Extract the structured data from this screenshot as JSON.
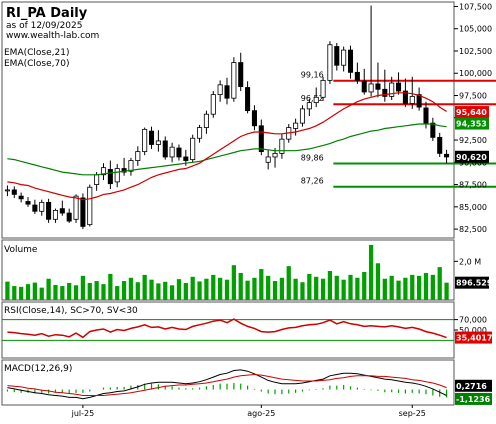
{
  "chart_data": [
    {
      "type": "candlestick",
      "panel": "price",
      "title": "RI_PA Daily",
      "subtitle": "as of 12/09/2025",
      "watermark": "www.wealth-lab.com",
      "overlay_labels": [
        "EMA(Close,21)",
        "EMA(Close,70)"
      ],
      "ylim": [
        81.5,
        108
      ],
      "yticks": [
        "82,500",
        "85,000",
        "87,500",
        "90,000",
        "92,500",
        "95,000",
        "97,500",
        "100,000",
        "102,500",
        "105,000",
        "107,500"
      ],
      "ytick_values": [
        82.5,
        85,
        87.5,
        90,
        92.5,
        95,
        97.5,
        100,
        102.5,
        105,
        107.5
      ],
      "x_labels": [
        {
          "label": "jul-25",
          "index": 11
        },
        {
          "label": "ago-25",
          "index": 37
        },
        {
          "label": "sep-25",
          "index": 59
        }
      ],
      "candles": [
        [
          86.8,
          87.4,
          86.2,
          86.9
        ],
        [
          86.9,
          87.3,
          86.0,
          86.4
        ],
        [
          86.2,
          86.6,
          85.5,
          85.9
        ],
        [
          85.6,
          86.1,
          85.0,
          85.3
        ],
        [
          85.2,
          85.8,
          84.2,
          84.5
        ],
        [
          84.5,
          85.8,
          84.0,
          85.5
        ],
        [
          85.5,
          85.9,
          83.2,
          83.6
        ],
        [
          83.6,
          84.8,
          83.2,
          84.6
        ],
        [
          84.8,
          85.7,
          84.0,
          84.3
        ],
        [
          84.3,
          84.8,
          83.2,
          83.4
        ],
        [
          83.6,
          86.4,
          83.2,
          86.2
        ],
        [
          86.0,
          86.5,
          82.5,
          82.8
        ],
        [
          83.0,
          87.5,
          82.8,
          87.2
        ],
        [
          87.5,
          88.9,
          86.8,
          88.6
        ],
        [
          88.6,
          89.9,
          88.0,
          89.4
        ],
        [
          89.2,
          90.2,
          87.0,
          87.6
        ],
        [
          87.8,
          89.8,
          87.2,
          89.3
        ],
        [
          89.3,
          90.5,
          88.5,
          88.9
        ],
        [
          89.0,
          90.5,
          88.5,
          90.2
        ],
        [
          90.2,
          91.8,
          89.6,
          91.2
        ],
        [
          91.2,
          93.9,
          90.8,
          93.7
        ],
        [
          93.5,
          94.0,
          91.5,
          92.0
        ],
        [
          92.0,
          93.6,
          91.2,
          92.4
        ],
        [
          92.4,
          92.9,
          90.3,
          90.6
        ],
        [
          90.6,
          92.2,
          90.0,
          91.7
        ],
        [
          91.6,
          92.0,
          90.2,
          90.6
        ],
        [
          90.6,
          91.4,
          89.6,
          90.2
        ],
        [
          90.3,
          93.1,
          90.0,
          92.7
        ],
        [
          92.7,
          94.2,
          92.2,
          93.9
        ],
        [
          93.9,
          95.8,
          93.2,
          95.4
        ],
        [
          95.4,
          98.0,
          95.0,
          97.6
        ],
        [
          97.6,
          99.2,
          96.8,
          98.7
        ],
        [
          98.6,
          99.5,
          96.5,
          97.2
        ],
        [
          97.2,
          101.8,
          96.8,
          101.2
        ],
        [
          101.2,
          102.3,
          98.0,
          98.5
        ],
        [
          98.4,
          99.1,
          95.5,
          95.8
        ],
        [
          95.8,
          96.4,
          93.6,
          94.1
        ],
        [
          94.1,
          94.8,
          90.8,
          91.2
        ],
        [
          90.0,
          91.4,
          89.2,
          90.6
        ],
        [
          90.6,
          91.6,
          89.4,
          91.0
        ],
        [
          91.0,
          93.2,
          90.4,
          92.6
        ],
        [
          92.6,
          94.3,
          92.2,
          93.9
        ],
        [
          93.8,
          94.9,
          93.0,
          94.4
        ],
        [
          94.4,
          96.4,
          94.0,
          96.0
        ],
        [
          96.0,
          97.1,
          95.2,
          96.7
        ],
        [
          96.7,
          98.4,
          96.2,
          97.3
        ],
        [
          97.3,
          99.6,
          96.9,
          99.2
        ],
        [
          99.2,
          103.6,
          98.8,
          103.2
        ],
        [
          103.0,
          103.4,
          100.3,
          100.9
        ],
        [
          100.9,
          103.0,
          100.2,
          102.6
        ],
        [
          102.6,
          103.1,
          99.4,
          100.1
        ],
        [
          100.1,
          101.2,
          98.8,
          99.2
        ],
        [
          99.1,
          100.5,
          97.6,
          97.9
        ],
        [
          97.9,
          107.6,
          97.4,
          98.8
        ],
        [
          98.8,
          101.2,
          97.3,
          98.2
        ],
        [
          98.2,
          100.4,
          96.8,
          97.4
        ],
        [
          97.4,
          99.6,
          97.0,
          98.9
        ],
        [
          98.9,
          100.1,
          97.6,
          98.0
        ],
        [
          98.0,
          99.4,
          96.2,
          96.6
        ],
        [
          96.6,
          99.6,
          96.0,
          97.4
        ],
        [
          97.6,
          98.4,
          95.8,
          96.2
        ],
        [
          96.1,
          96.8,
          93.8,
          94.4
        ],
        [
          94.4,
          95.0,
          92.4,
          92.8
        ],
        [
          92.8,
          93.3,
          90.6,
          91.0
        ],
        [
          90.9,
          91.4,
          89.9,
          90.6
        ]
      ],
      "ema21": [
        87.8,
        87.7,
        87.5,
        87.4,
        87.1,
        86.9,
        86.7,
        86.5,
        86.3,
        86.1,
        86.0,
        85.8,
        85.9,
        86.1,
        86.4,
        86.5,
        86.7,
        86.9,
        87.2,
        87.5,
        87.9,
        88.3,
        88.6,
        88.8,
        89.0,
        89.2,
        89.3,
        89.6,
        89.9,
        90.4,
        90.9,
        91.4,
        91.9,
        92.4,
        92.9,
        93.2,
        93.4,
        93.4,
        93.3,
        93.2,
        93.2,
        93.3,
        93.4,
        93.6,
        93.8,
        94.1,
        94.5,
        95.0,
        95.5,
        96.0,
        96.4,
        96.8,
        97.1,
        97.3,
        97.5,
        97.6,
        97.7,
        97.8,
        97.8,
        97.7,
        97.5,
        97.2,
        96.8,
        96.2,
        95.7
      ],
      "ema70": [
        90.4,
        90.3,
        90.1,
        89.9,
        89.7,
        89.5,
        89.3,
        89.1,
        88.9,
        88.8,
        88.7,
        88.6,
        88.6,
        88.6,
        88.7,
        88.8,
        88.9,
        89.0,
        89.1,
        89.2,
        89.3,
        89.4,
        89.5,
        89.6,
        89.7,
        89.8,
        89.9,
        90.0,
        90.1,
        90.3,
        90.5,
        90.7,
        90.9,
        91.1,
        91.3,
        91.4,
        91.5,
        91.5,
        91.4,
        91.3,
        91.3,
        91.3,
        91.3,
        91.4,
        91.5,
        91.7,
        91.9,
        92.1,
        92.4,
        92.6,
        92.9,
        93.1,
        93.3,
        93.5,
        93.6,
        93.8,
        93.9,
        94.0,
        94.1,
        94.2,
        94.3,
        94.3,
        94.3,
        94.1,
        94.0
      ],
      "levels": [
        {
          "label": "99,16",
          "value": 99.16,
          "color": "#e00000",
          "start": 48,
          "end": 73
        },
        {
          "label": "96,52",
          "value": 96.52,
          "color": "#e00000",
          "start": 48,
          "end": 73
        },
        {
          "label": "89,86",
          "value": 89.86,
          "color": "#009000",
          "start": 48,
          "end": 73
        },
        {
          "label": "87,26",
          "value": 87.26,
          "color": "#009000",
          "start": 48,
          "end": 73
        }
      ],
      "tags": [
        {
          "label": "95,640",
          "value": 95.64,
          "bg": "#e00000",
          "fg": "#ffffff"
        },
        {
          "label": "94,353",
          "value": 94.353,
          "bg": "#009000",
          "fg": "#ffffff"
        },
        {
          "label": "90,620",
          "value": 90.62,
          "bg": "#000000",
          "fg": "#ffffff"
        }
      ]
    },
    {
      "type": "bar",
      "panel": "volume",
      "label": "Volume",
      "ylim": [
        0,
        3000000
      ],
      "yticks": [
        "2,0 M"
      ],
      "ytick_values": [
        2000000
      ],
      "tag": "896.529",
      "tag_value": 896529,
      "values": [
        950000,
        720000,
        680000,
        820000,
        900000,
        640000,
        1100000,
        780000,
        720000,
        880000,
        760000,
        1250000,
        880000,
        980000,
        820000,
        1350000,
        720000,
        980000,
        1150000,
        920000,
        1300000,
        1050000,
        860000,
        940000,
        760000,
        1080000,
        880000,
        1200000,
        960000,
        1100000,
        1300000,
        1150000,
        1050000,
        1800000,
        1400000,
        1000000,
        1150000,
        1600000,
        1250000,
        980000,
        1150000,
        1750000,
        1100000,
        920000,
        1350000,
        1200000,
        1100000,
        1500000,
        1250000,
        1050000,
        1300000,
        1150000,
        1450000,
        2850000,
        1900000,
        1100000,
        1250000,
        1000000,
        1150000,
        1300000,
        1250000,
        1400000,
        1300000,
        1700000,
        896529
      ]
    },
    {
      "type": "line",
      "panel": "rsi",
      "label": "RSI(Close,14), SC>70, SV<30",
      "ylim": [
        0,
        100
      ],
      "yticks": [
        "70,000",
        "50,000"
      ],
      "ytick_values": [
        70,
        50
      ],
      "bands": [
        70,
        30
      ],
      "tag": "35,4017",
      "tag_value": 35.4017,
      "values": [
        46,
        45,
        43,
        42,
        40,
        43,
        38,
        41,
        40,
        37,
        44,
        36,
        47,
        50,
        52,
        46,
        51,
        49,
        53,
        56,
        60,
        55,
        56,
        52,
        55,
        52,
        51,
        57,
        60,
        63,
        67,
        69,
        64,
        71,
        63,
        57,
        53,
        47,
        46,
        47,
        51,
        54,
        55,
        58,
        60,
        61,
        64,
        69,
        62,
        66,
        62,
        60,
        57,
        58,
        57,
        56,
        58,
        56,
        53,
        55,
        52,
        47,
        44,
        40,
        35.4
      ]
    },
    {
      "type": "line",
      "panel": "macd",
      "label": "MACD(12,26,9)",
      "ylim": [
        -2.2,
        4.2
      ],
      "tags": [
        {
          "label": "0,2716",
          "value": 0.2716
        },
        {
          "label": "-1,1236",
          "value": -1.1236
        }
      ],
      "macd": [
        0.3,
        0.1,
        -0.1,
        -0.3,
        -0.5,
        -0.6,
        -0.8,
        -0.9,
        -1.0,
        -1.2,
        -1.2,
        -1.4,
        -1.2,
        -0.9,
        -0.6,
        -0.5,
        -0.3,
        -0.2,
        0.1,
        0.4,
        0.8,
        1.0,
        1.1,
        1.1,
        1.1,
        1.0,
        0.9,
        1.0,
        1.2,
        1.5,
        1.9,
        2.3,
        2.5,
        2.9,
        3.0,
        2.8,
        2.4,
        1.9,
        1.4,
        1.1,
        0.9,
        0.9,
        0.9,
        1.0,
        1.2,
        1.4,
        1.6,
        2.1,
        2.3,
        2.5,
        2.5,
        2.4,
        2.2,
        2.0,
        1.8,
        1.6,
        1.5,
        1.3,
        1.1,
        1.0,
        0.8,
        0.5,
        0.1,
        -0.4,
        -0.9
      ],
      "signal": [
        0.6,
        0.5,
        0.4,
        0.2,
        0.1,
        -0.1,
        -0.2,
        -0.4,
        -0.5,
        -0.6,
        -0.7,
        -0.9,
        -0.9,
        -0.9,
        -0.9,
        -0.8,
        -0.7,
        -0.6,
        -0.5,
        -0.3,
        -0.1,
        0.1,
        0.3,
        0.5,
        0.6,
        0.7,
        0.7,
        0.8,
        0.9,
        1.0,
        1.2,
        1.4,
        1.6,
        1.9,
        2.1,
        2.2,
        2.3,
        2.2,
        2.0,
        1.8,
        1.6,
        1.5,
        1.4,
        1.3,
        1.3,
        1.3,
        1.4,
        1.5,
        1.7,
        1.8,
        2.0,
        2.1,
        2.1,
        2.1,
        2.0,
        2.0,
        1.9,
        1.8,
        1.7,
        1.5,
        1.4,
        1.2,
        1.0,
        0.7,
        0.3
      ]
    }
  ]
}
